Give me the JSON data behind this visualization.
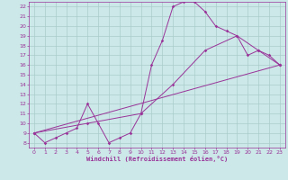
{
  "xlabel": "Windchill (Refroidissement éolien,°C)",
  "bg_color": "#cce8e8",
  "line_color": "#993399",
  "grid_color": "#aacccc",
  "xlim": [
    -0.5,
    23.5
  ],
  "ylim": [
    7.5,
    22.5
  ],
  "xticks": [
    0,
    1,
    2,
    3,
    4,
    5,
    6,
    7,
    8,
    9,
    10,
    11,
    12,
    13,
    14,
    15,
    16,
    17,
    18,
    19,
    20,
    21,
    22,
    23
  ],
  "yticks": [
    8,
    9,
    10,
    11,
    12,
    13,
    14,
    15,
    16,
    17,
    18,
    19,
    20,
    21,
    22
  ],
  "line1_x": [
    0,
    1,
    2,
    3,
    4,
    5,
    6,
    7,
    8,
    9,
    10,
    11,
    12,
    13,
    14,
    15,
    16,
    17,
    18,
    19,
    20,
    21,
    22,
    23
  ],
  "line1_y": [
    9.0,
    8.0,
    8.5,
    9.0,
    9.5,
    12.0,
    10.0,
    8.0,
    8.5,
    9.0,
    11.0,
    16.0,
    18.5,
    22.0,
    22.5,
    22.5,
    21.5,
    20.0,
    19.5,
    19.0,
    17.0,
    17.5,
    17.0,
    16.0
  ],
  "line2_x": [
    0,
    5,
    10,
    13,
    16,
    19,
    21,
    23
  ],
  "line2_y": [
    9.0,
    10.0,
    11.0,
    14.0,
    17.5,
    19.0,
    17.5,
    16.0
  ],
  "line3_x": [
    0,
    23
  ],
  "line3_y": [
    9.0,
    16.0
  ]
}
